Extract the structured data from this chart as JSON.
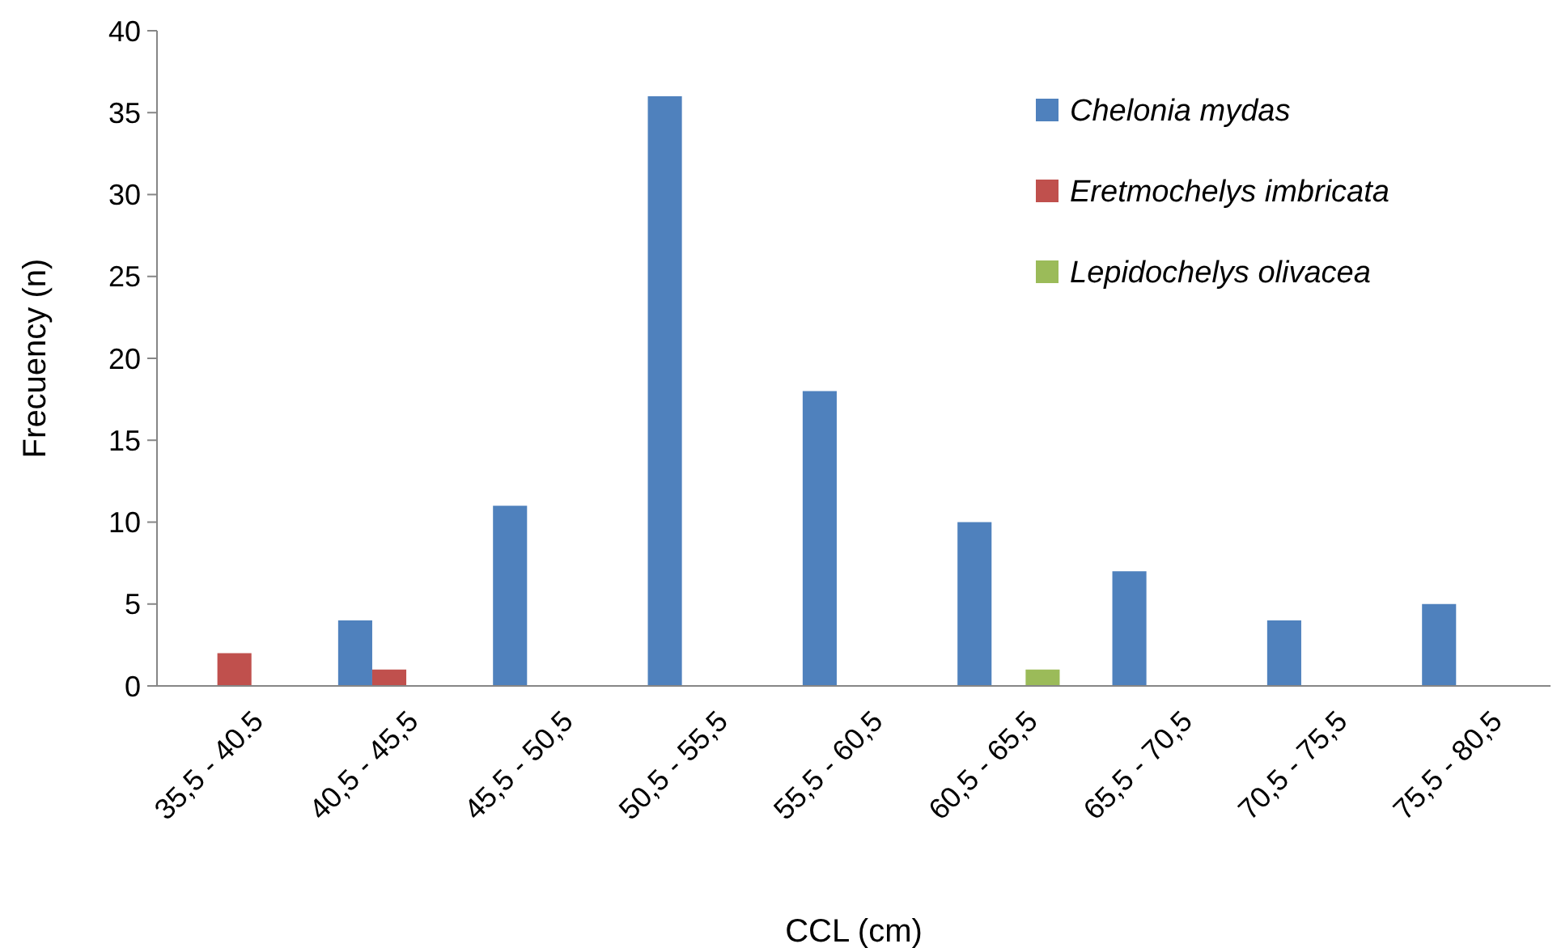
{
  "chart_data": {
    "type": "bar",
    "xlabel": "CCL (cm)",
    "ylabel": "Frecuency (n)",
    "categories": [
      "35,5 - 40.5",
      "40,5 - 45,5",
      "45,5 - 50,5",
      "50,5 - 55,5",
      "55,5 - 60,5",
      "60,5 - 65,5",
      "65,5 - 70,5",
      "70,5 - 75,5",
      "75,5 - 80,5"
    ],
    "series": [
      {
        "name": "Chelonia mydas",
        "color": "#4f81bd",
        "values": [
          null,
          4,
          11,
          36,
          18,
          10,
          7,
          4,
          5
        ]
      },
      {
        "name": "Eretmochelys imbricata",
        "color": "#c0504d",
        "values": [
          2,
          1,
          null,
          null,
          null,
          null,
          null,
          null,
          null
        ]
      },
      {
        "name": "Lepidochelys olivacea",
        "color": "#9bbb59",
        "values": [
          null,
          null,
          null,
          null,
          null,
          1,
          null,
          null,
          null
        ]
      }
    ],
    "ylim": [
      0,
      40
    ],
    "yticks": [
      0,
      5,
      10,
      15,
      20,
      25,
      30,
      35,
      40
    ],
    "grid": false,
    "legend": "top right"
  }
}
